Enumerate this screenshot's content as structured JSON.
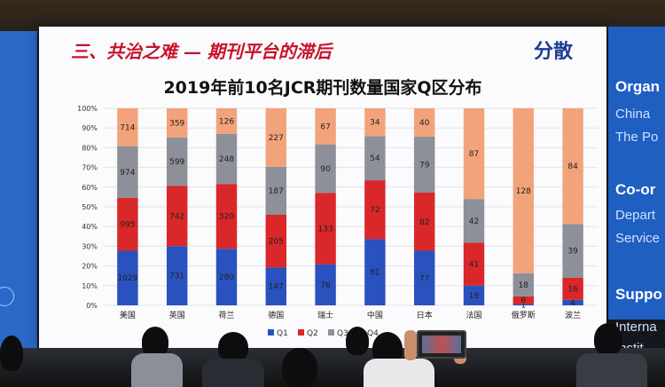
{
  "slide": {
    "headline": "三、共治之难 — 期刊平台的滞后",
    "corner_tag": "分散",
    "chart_title": "2019年前10名JCR期刊数量国家Q区分布"
  },
  "right_screen": {
    "lines": [
      "Organ",
      "China",
      "The Po",
      "Co-or",
      "Depart",
      "Service",
      "Suppo",
      "Interna",
      "Instit"
    ]
  },
  "chart_data": {
    "type": "bar",
    "stacked": "percent",
    "title": "2019年前10名JCR期刊数量国家Q区分布",
    "categories": [
      "美国",
      "英国",
      "荷兰",
      "德国",
      "瑞士",
      "中国",
      "日本",
      "法国",
      "俄罗斯",
      "波兰"
    ],
    "series": [
      {
        "name": "Q1",
        "color": "#2a52be",
        "values": [
          1029,
          731,
          280,
          147,
          76,
          81,
          77,
          19,
          1,
          4
        ]
      },
      {
        "name": "Q2",
        "color": "#d9272a",
        "values": [
          995,
          742,
          320,
          205,
          133,
          72,
          82,
          41,
          6,
          16
        ]
      },
      {
        "name": "Q3",
        "color": "#8d9098",
        "values": [
          974,
          599,
          248,
          187,
          90,
          54,
          79,
          42,
          18,
          39
        ]
      },
      {
        "name": "Q4",
        "color": "#f2a37a",
        "values": [
          714,
          359,
          126,
          227,
          67,
          34,
          40,
          87,
          128,
          84
        ]
      }
    ],
    "y_ticks": [
      "0%",
      "10%",
      "20%",
      "30%",
      "40%",
      "50%",
      "60%",
      "70%",
      "80%",
      "90%",
      "100%"
    ],
    "ylim": [
      0,
      100
    ],
    "legend": {
      "placement": "bottom",
      "labels": [
        "Q1",
        "Q2",
        "Q3",
        "Q4"
      ]
    }
  }
}
